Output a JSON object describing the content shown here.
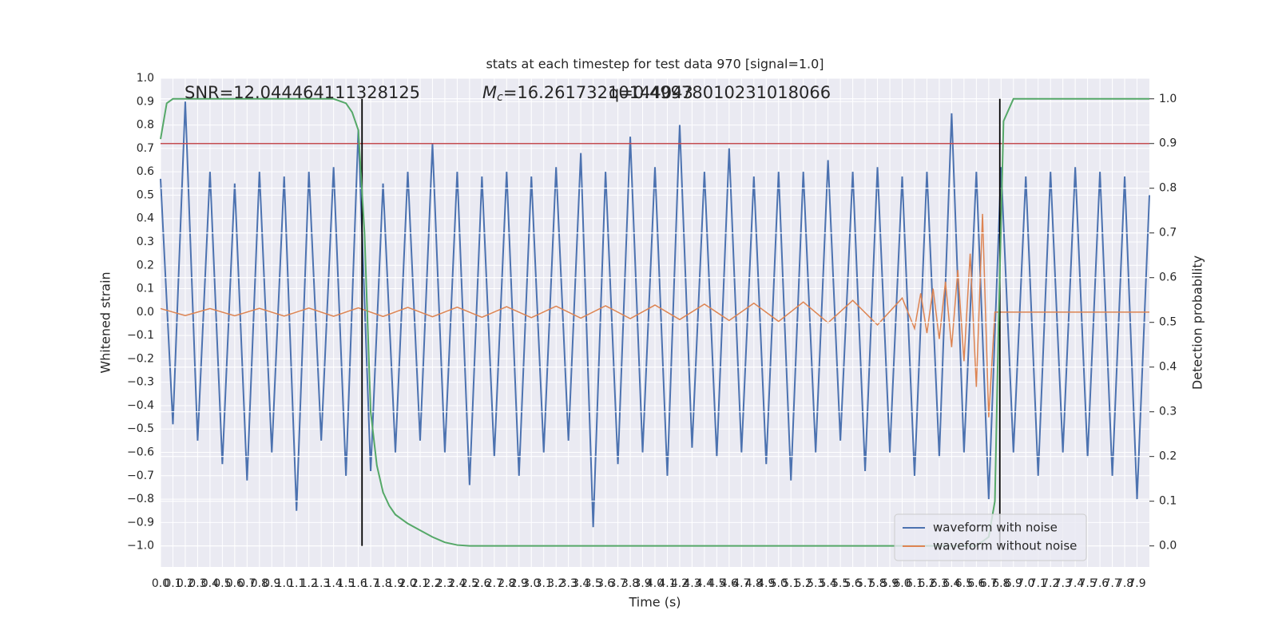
{
  "chart_data": {
    "type": "line",
    "title": "stats at each timestep for test data 970 [signal=1.0]",
    "xlabel": "Time (s)",
    "ylabel": "Whitened strain",
    "y2label": "Detection probability",
    "annotations": [
      {
        "text": "SNR=12.044464111328125"
      },
      {
        "symbol": "M",
        "subscript": "c",
        "text": "=16.26173210144043"
      },
      {
        "text": "q=0.49978010231018066"
      }
    ],
    "x": [
      0,
      0.1,
      0.2,
      0.3,
      0.4,
      0.5,
      0.6,
      0.7,
      0.8,
      0.9,
      1.0,
      1.1,
      1.2,
      1.3,
      1.4,
      1.5,
      1.6,
      1.7,
      1.8,
      1.9,
      2.0,
      2.1,
      2.2,
      2.3,
      2.4,
      2.5,
      2.6,
      2.7,
      2.8,
      2.9,
      3.0,
      3.1,
      3.2,
      3.3,
      3.4,
      3.5,
      3.6,
      3.7,
      3.8,
      3.9,
      4.0,
      4.1,
      4.2,
      4.3,
      4.4,
      4.5,
      4.6,
      4.7,
      4.8,
      4.9,
      5.0,
      5.1,
      5.2,
      5.3,
      5.4,
      5.5,
      5.6,
      5.7,
      5.8,
      5.9,
      6.0,
      6.1,
      6.2,
      6.3,
      6.4,
      6.5,
      6.6,
      6.7,
      6.8,
      6.9,
      7.0,
      7.1,
      7.2,
      7.3,
      7.4,
      7.5,
      7.6,
      7.7,
      7.8,
      7.9,
      8.0
    ],
    "series": [
      {
        "name": "waveform with noise",
        "color": "#4c72b0",
        "values": [
          0.57,
          -0.48,
          0.9,
          -0.55,
          0.6,
          -0.65,
          0.55,
          -0.72,
          0.6,
          -0.6,
          0.58,
          -0.85,
          0.6,
          -0.55,
          0.62,
          -0.7,
          0.78,
          -0.68,
          0.55,
          -0.6,
          0.6,
          -0.55,
          0.72,
          -0.6,
          0.6,
          -0.74,
          0.58,
          -0.62,
          0.6,
          -0.7,
          0.58,
          -0.6,
          0.62,
          -0.55,
          0.68,
          -0.92,
          0.6,
          -0.65,
          0.75,
          -0.6,
          0.62,
          -0.7,
          0.8,
          -0.58,
          0.6,
          -0.62,
          0.7,
          -0.6,
          0.58,
          -0.65,
          0.6,
          -0.72,
          0.6,
          -0.6,
          0.65,
          -0.55,
          0.6,
          -0.68,
          0.62,
          -0.6,
          0.58,
          -0.7,
          0.6,
          -0.62,
          0.85,
          -0.6,
          0.6,
          -0.8,
          0.62,
          -0.6,
          0.58,
          -0.7,
          0.6,
          -0.6,
          0.62,
          -0.62,
          0.6,
          -0.7,
          0.58,
          -0.8,
          0.5
        ]
      },
      {
        "name": "waveform without noise",
        "color": "#dd8452",
        "x": [
          0,
          0.2,
          0.4,
          0.6,
          0.8,
          1.0,
          1.2,
          1.4,
          1.6,
          1.8,
          2.0,
          2.2,
          2.4,
          2.6,
          2.8,
          3.0,
          3.2,
          3.4,
          3.6,
          3.8,
          4.0,
          4.2,
          4.4,
          4.6,
          4.8,
          5.0,
          5.2,
          5.4,
          5.6,
          5.8,
          6.0,
          6.1,
          6.15,
          6.2,
          6.25,
          6.3,
          6.35,
          6.4,
          6.45,
          6.5,
          6.55,
          6.6,
          6.65,
          6.7,
          6.75,
          8.0
        ],
        "values": [
          0.015,
          -0.015,
          0.015,
          -0.016,
          0.016,
          -0.017,
          0.017,
          -0.018,
          0.018,
          -0.019,
          0.02,
          -0.02,
          0.021,
          -0.022,
          0.023,
          -0.024,
          0.025,
          -0.026,
          0.027,
          -0.028,
          0.03,
          -0.032,
          0.034,
          -0.036,
          0.038,
          -0.04,
          0.043,
          -0.046,
          0.05,
          -0.055,
          0.06,
          -0.07,
          0.08,
          -0.09,
          0.1,
          -0.115,
          0.13,
          -0.15,
          0.18,
          -0.21,
          0.25,
          -0.32,
          0.42,
          -0.45,
          0,
          0
        ]
      },
      {
        "color": "#55a868",
        "axis": "y2",
        "x": [
          0,
          0.05,
          0.1,
          0.2,
          0.5,
          1.0,
          1.4,
          1.5,
          1.55,
          1.6,
          1.65,
          1.7,
          1.75,
          1.8,
          1.85,
          1.9,
          2.0,
          2.1,
          2.2,
          2.3,
          2.4,
          2.5,
          2.6,
          3.0,
          6.5,
          6.6,
          6.7,
          6.75,
          6.78,
          6.82,
          6.9,
          7.0,
          8.0
        ],
        "values": [
          0.91,
          0.99,
          1.0,
          1.0,
          1.0,
          1.0,
          1.0,
          0.99,
          0.97,
          0.93,
          0.7,
          0.3,
          0.18,
          0.12,
          0.09,
          0.07,
          0.05,
          0.035,
          0.02,
          0.008,
          0.002,
          0,
          0,
          0,
          0,
          0,
          0.02,
          0.1,
          0.5,
          0.95,
          1.0,
          1.0,
          1.0
        ]
      }
    ],
    "threshold": {
      "value": 0.9,
      "axis": "y2",
      "color": "#c44e52"
    },
    "vlines": {
      "x": [
        1.63,
        6.79
      ],
      "ymin": 0,
      "ymax": 1,
      "axis": "y2",
      "color": "#000000"
    },
    "xlim": [
      0,
      8
    ],
    "ylim": [
      -1.09,
      1.0
    ],
    "y2lim": [
      -0.047,
      1.046
    ],
    "xticks": [
      {
        "value": 0,
        "label": "0.0"
      },
      0.1,
      0.2,
      0.3,
      0.4,
      0.5,
      0.6,
      0.7,
      0.8,
      0.9,
      {
        "value": 1,
        "label": "1.0"
      },
      1.1,
      1.2,
      1.3,
      1.4,
      1.5,
      1.6,
      1.7,
      1.8,
      1.9,
      {
        "value": 2,
        "label": "2.0"
      },
      2.1,
      2.2,
      2.3,
      2.4,
      2.5,
      2.6,
      2.7,
      2.8,
      2.9,
      {
        "value": 3,
        "label": "3.0"
      },
      3.1,
      3.2,
      3.3,
      3.4,
      3.5,
      3.6,
      3.7,
      3.8,
      3.9,
      {
        "value": 4,
        "label": "4.0"
      },
      4.1,
      4.2,
      4.3,
      4.4,
      4.5,
      4.6,
      4.7,
      4.8,
      4.9,
      {
        "value": 5,
        "label": "5.0"
      },
      5.1,
      5.2,
      5.3,
      5.4,
      5.5,
      5.6,
      5.7,
      5.8,
      5.9,
      {
        "value": 6,
        "label": "6.0"
      },
      6.1,
      6.2,
      6.3,
      6.4,
      6.5,
      6.6,
      6.7,
      6.8,
      6.9,
      {
        "value": 7,
        "label": "7.0"
      },
      7.1,
      7.2,
      7.3,
      7.4,
      7.5,
      7.6,
      7.7,
      7.8,
      7.9
    ],
    "yticks": [
      {
        "value": -1,
        "label": "−1.0"
      },
      {
        "value": -0.9,
        "label": "−0.9"
      },
      {
        "value": -0.8,
        "label": "−0.8"
      },
      {
        "value": -0.7,
        "label": "−0.7"
      },
      {
        "value": -0.6,
        "label": "−0.6"
      },
      {
        "value": -0.5,
        "label": "−0.5"
      },
      {
        "value": -0.4,
        "label": "−0.4"
      },
      {
        "value": -0.3,
        "label": "−0.3"
      },
      {
        "value": -0.2,
        "label": "−0.2"
      },
      {
        "value": -0.1,
        "label": "−0.1"
      },
      {
        "value": 0,
        "label": "0.0"
      },
      0.1,
      0.2,
      0.3,
      0.4,
      0.5,
      0.6,
      0.7,
      0.8,
      0.9,
      {
        "value": 1,
        "label": "1.0"
      }
    ],
    "y2ticks": [
      {
        "value": 0,
        "label": "0.0"
      },
      0.1,
      0.2,
      0.3,
      0.4,
      0.5,
      0.6,
      0.7,
      0.8,
      0.9,
      {
        "value": 1,
        "label": "1.0"
      }
    ],
    "grid": true,
    "background": "#eaeaf2",
    "legend": "lower right"
  }
}
